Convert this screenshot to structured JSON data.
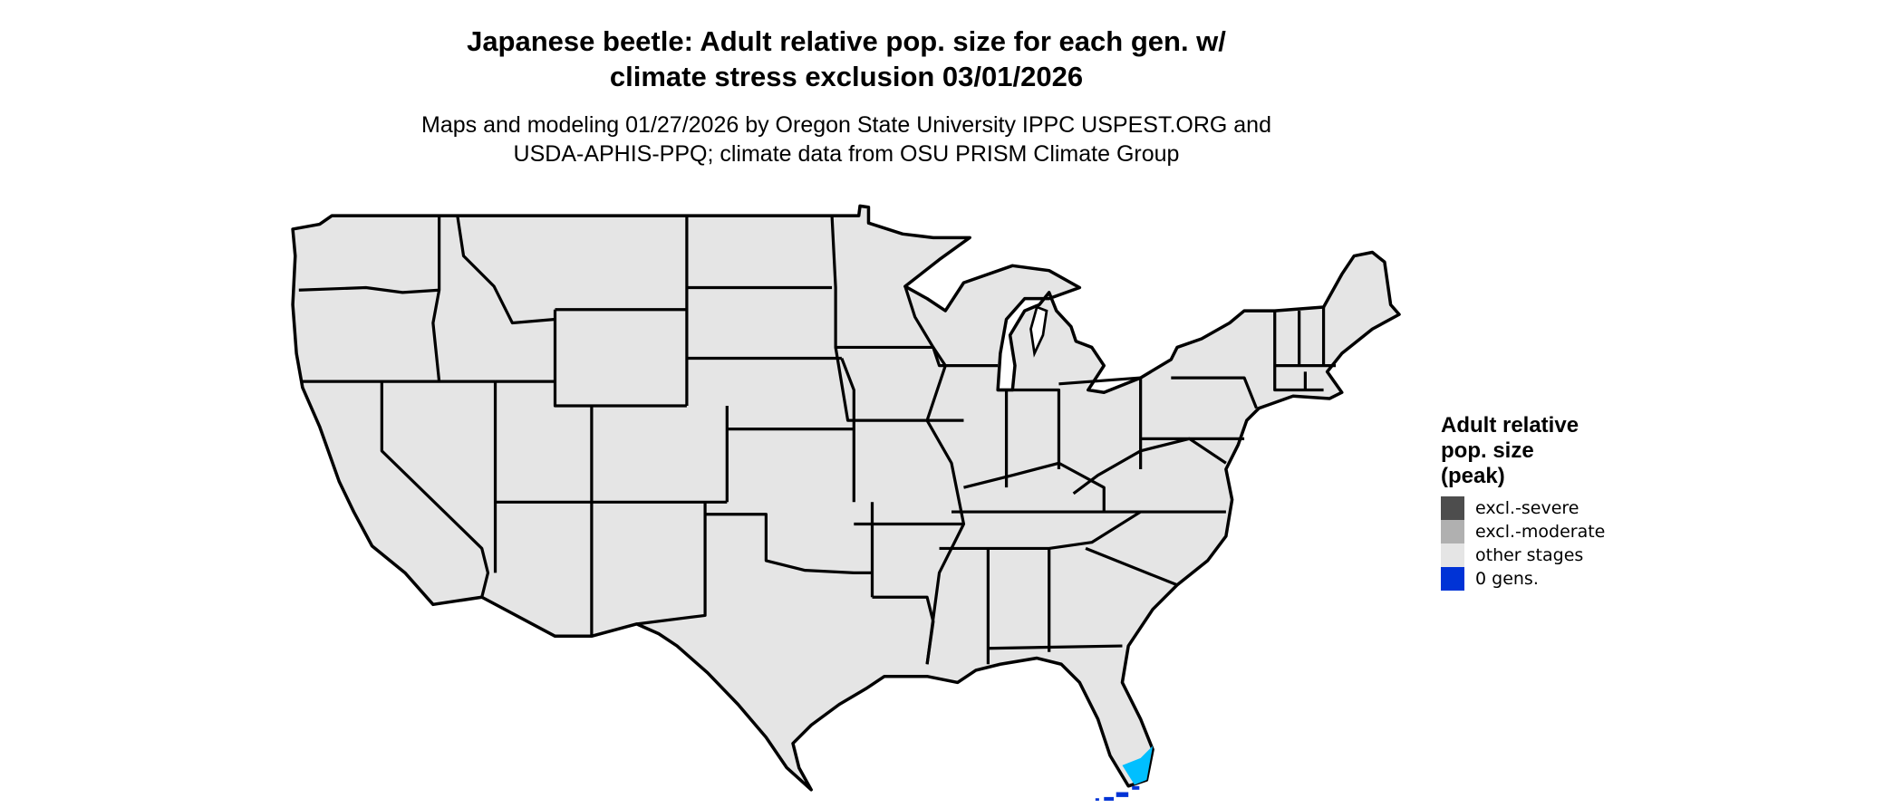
{
  "title": {
    "line1": "Japanese beetle: Adult relative pop. size for each gen. w/",
    "line2": "climate stress exclusion 03/01/2026"
  },
  "subtitle": {
    "line1": "Maps and modeling 01/27/2026 by Oregon State University IPPC USPEST.ORG and",
    "line2": "USDA-APHIS-PPQ; climate data from OSU PRISM Climate Group"
  },
  "legend": {
    "title_lines": [
      "Adult relative",
      "pop. size",
      "(peak)"
    ],
    "items": [
      {
        "label": "excl.-severe",
        "color": "#4D4D4D"
      },
      {
        "label": "excl.-moderate",
        "color": "#B0B0B0"
      },
      {
        "label": "other stages",
        "color": "#E5E5E5"
      },
      {
        "label": "0 gens.",
        "color": "#0033D6"
      }
    ]
  },
  "map": {
    "region": "Contiguous United States",
    "base_color": "#E5E5E5",
    "border_color": "#000000",
    "south_florida_color": "#00BFFF",
    "florida_keys_color": "#0033D6"
  }
}
